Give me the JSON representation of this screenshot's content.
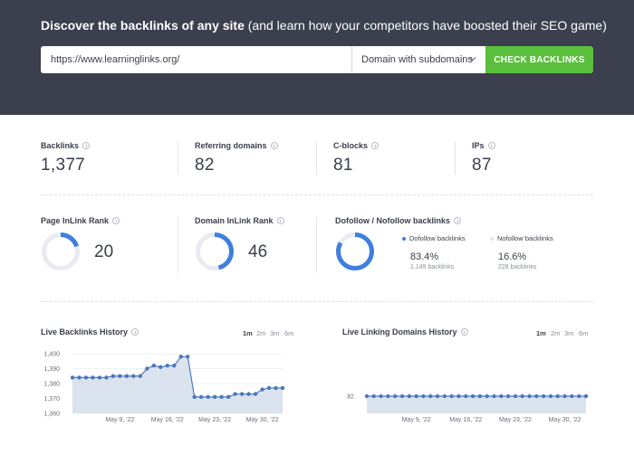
{
  "hero": {
    "title_bold": "Discover the backlinks of any site",
    "title_rest": " (and learn how your competitors have boosted their SEO game)",
    "url_value": "https://www.learninglinks.org/",
    "scope_value": "Domain with subdomains",
    "check_button": "CHECK BACKLINKS"
  },
  "stats": [
    {
      "label": "Backlinks",
      "value": "1,377"
    },
    {
      "label": "Referring domains",
      "value": "82"
    },
    {
      "label": "C-blocks",
      "value": "81"
    },
    {
      "label": "IPs",
      "value": "87"
    }
  ],
  "ranks": {
    "page": {
      "label": "Page InLink Rank",
      "value": "20",
      "fraction": 0.2
    },
    "domain": {
      "label": "Domain InLink Rank",
      "value": "46",
      "fraction": 0.46
    }
  },
  "follow": {
    "label": "Dofollow / Nofollow backlinks",
    "dofollow": {
      "name": "Dofollow backlinks",
      "pct": "83.4%",
      "count": "1,149 backlinks",
      "fraction": 0.834
    },
    "nofollow": {
      "name": "Nofollow backlinks",
      "pct": "16.6%",
      "count": "228 backlinks"
    }
  },
  "colors": {
    "accent": "#3f7fdd",
    "track": "#e9ebf0",
    "green": "#5bbf3e",
    "area": "#dbe3ef",
    "line": "#4a78bd"
  },
  "ranges": [
    "1m",
    "2m",
    "3m",
    "6m"
  ],
  "chart_data": [
    {
      "type": "area",
      "title": "Live Backlinks History",
      "xlabel": "",
      "ylabel": "",
      "ylim": [
        1360,
        1400
      ],
      "yticks": [
        "1,360",
        "1,370",
        "1,380",
        "1,390",
        "1,400"
      ],
      "xticks": [
        "May 9, '22",
        "May 16, '22",
        "May 23, '22",
        "May 30, '22"
      ],
      "x": [
        "May 2",
        "May 3",
        "May 4",
        "May 5",
        "May 6",
        "May 7",
        "May 8",
        "May 9",
        "May 10",
        "May 11",
        "May 12",
        "May 13",
        "May 14",
        "May 15",
        "May 16",
        "May 17",
        "May 18",
        "May 19",
        "May 20",
        "May 21",
        "May 22",
        "May 23",
        "May 24",
        "May 25",
        "May 26",
        "May 27",
        "May 28",
        "May 29",
        "May 30",
        "May 31",
        "Jun 1",
        "Jun 2"
      ],
      "series": [
        {
          "values": [
            1384,
            1384,
            1384,
            1384,
            1384,
            1384,
            1385,
            1385,
            1385,
            1385,
            1385,
            1390,
            1392,
            1391,
            1392,
            1392,
            1398,
            1398,
            1371,
            1371,
            1371,
            1371,
            1371,
            1371,
            1373,
            1373,
            1373,
            1373,
            1376,
            1377,
            1377,
            1377
          ]
        }
      ]
    },
    {
      "type": "area",
      "title": "Live Linking Domains History",
      "xlabel": "",
      "ylabel": "",
      "ylim": [
        0,
        82
      ],
      "yticks": [
        "82"
      ],
      "xticks": [
        "May 9, '22",
        "May 16, '22",
        "May 23, '22",
        "May 30, '22"
      ],
      "x": [
        "May 2",
        "May 3",
        "May 4",
        "May 5",
        "May 6",
        "May 7",
        "May 8",
        "May 9",
        "May 10",
        "May 11",
        "May 12",
        "May 13",
        "May 14",
        "May 15",
        "May 16",
        "May 17",
        "May 18",
        "May 19",
        "May 20",
        "May 21",
        "May 22",
        "May 23",
        "May 24",
        "May 25",
        "May 26",
        "May 27",
        "May 28",
        "May 29",
        "May 30",
        "May 31",
        "Jun 1",
        "Jun 2"
      ],
      "series": [
        {
          "values": [
            82,
            82,
            82,
            82,
            82,
            82,
            82,
            82,
            82,
            82,
            82,
            82,
            82,
            82,
            82,
            82,
            82,
            82,
            82,
            82,
            82,
            82,
            82,
            82,
            82,
            82,
            82,
            82,
            82,
            82,
            82,
            82
          ]
        }
      ]
    }
  ]
}
